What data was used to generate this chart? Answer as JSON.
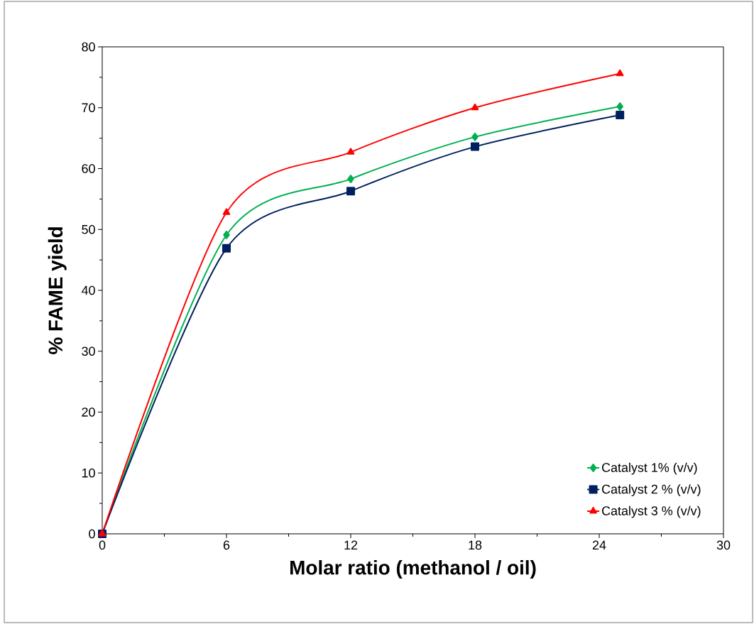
{
  "chart_data": {
    "type": "line",
    "xlabel": "Molar ratio (methanol / oil)",
    "ylabel": "%  FAME yield",
    "xlim": [
      0,
      30
    ],
    "xticks": [
      0,
      6,
      12,
      18,
      24,
      30
    ],
    "ylim": [
      0,
      80
    ],
    "yticks": [
      0,
      10,
      20,
      30,
      40,
      50,
      60,
      70,
      80
    ],
    "grid": false,
    "legend": "bottom right",
    "line_style": "solid",
    "series": [
      {
        "name": "Catalyst 1%  (v/v)",
        "color": "#00b050",
        "marker": "diamond",
        "x": [
          0,
          6,
          12,
          18,
          25
        ],
        "values": [
          0,
          49.1,
          58.3,
          65.2,
          70.2
        ]
      },
      {
        "name": "Catalyst 2 % (v/v)",
        "color": "#002060",
        "marker": "square",
        "x": [
          0,
          6,
          12,
          18,
          25
        ],
        "values": [
          0,
          46.9,
          56.3,
          63.6,
          68.8
        ]
      },
      {
        "name": "Catalyst 3 % (v/v)",
        "color": "#ff0000",
        "marker": "triangle",
        "x": [
          0,
          6,
          12,
          18,
          25
        ],
        "values": [
          0,
          52.8,
          62.7,
          70.0,
          75.6
        ]
      }
    ]
  }
}
